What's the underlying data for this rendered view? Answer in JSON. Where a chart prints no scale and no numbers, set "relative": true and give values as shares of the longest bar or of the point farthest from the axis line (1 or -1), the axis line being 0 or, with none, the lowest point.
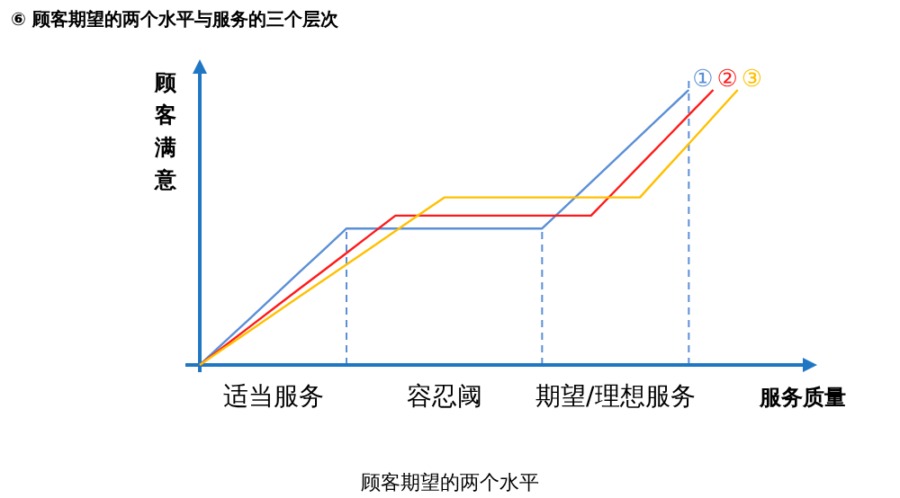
{
  "chart_data": {
    "type": "line",
    "title": "⑥ 顾客期望的两个水平与服务的三个层次",
    "xlabel": "服务质量",
    "ylabel": "顾客满意",
    "relative": true,
    "categories": [
      null,
      null,
      null,
      null,
      null,
      null,
      null,
      null,
      null,
      null,
      null,
      null,
      null,
      null,
      null,
      null,
      null,
      null,
      null,
      null,
      null,
      null,
      null,
      null,
      null
    ],
    "series": [
      {
        "name": "①",
        "color": "#5b8fd6",
        "values": [
          0,
          0.083,
          0.165,
          0.248,
          0.331,
          0.413,
          0.496,
          0.496,
          0.496,
          0.496,
          0.496,
          0.496,
          0.496,
          0.496,
          0.496,
          0.58,
          0.664,
          0.748,
          0.832,
          0.916,
          1,
          null,
          null,
          null,
          null
        ]
      },
      {
        "name": "②",
        "color": "#ff1a1a",
        "values": [
          0,
          0.068,
          0.136,
          0.204,
          0.272,
          0.339,
          0.407,
          0.475,
          0.543,
          0.543,
          0.543,
          0.543,
          0.543,
          0.543,
          0.543,
          0.543,
          0.543,
          0.634,
          0.726,
          0.817,
          0.909,
          1,
          null,
          null,
          null
        ]
      },
      {
        "name": "③",
        "color": "#ffc000",
        "values": [
          0,
          0.061,
          0.122,
          0.183,
          0.244,
          0.305,
          0.365,
          0.426,
          0.487,
          0.548,
          0.609,
          0.609,
          0.609,
          0.609,
          0.609,
          0.609,
          0.609,
          0.609,
          0.609,
          0.707,
          0.804,
          0.902,
          1,
          null,
          null
        ]
      }
    ],
    "annotations": [
      "适当服务",
      "容忍阈",
      "期望/理想服务",
      "顾客期望的两个水平"
    ],
    "marker": "none",
    "line_style": "solid"
  }
}
